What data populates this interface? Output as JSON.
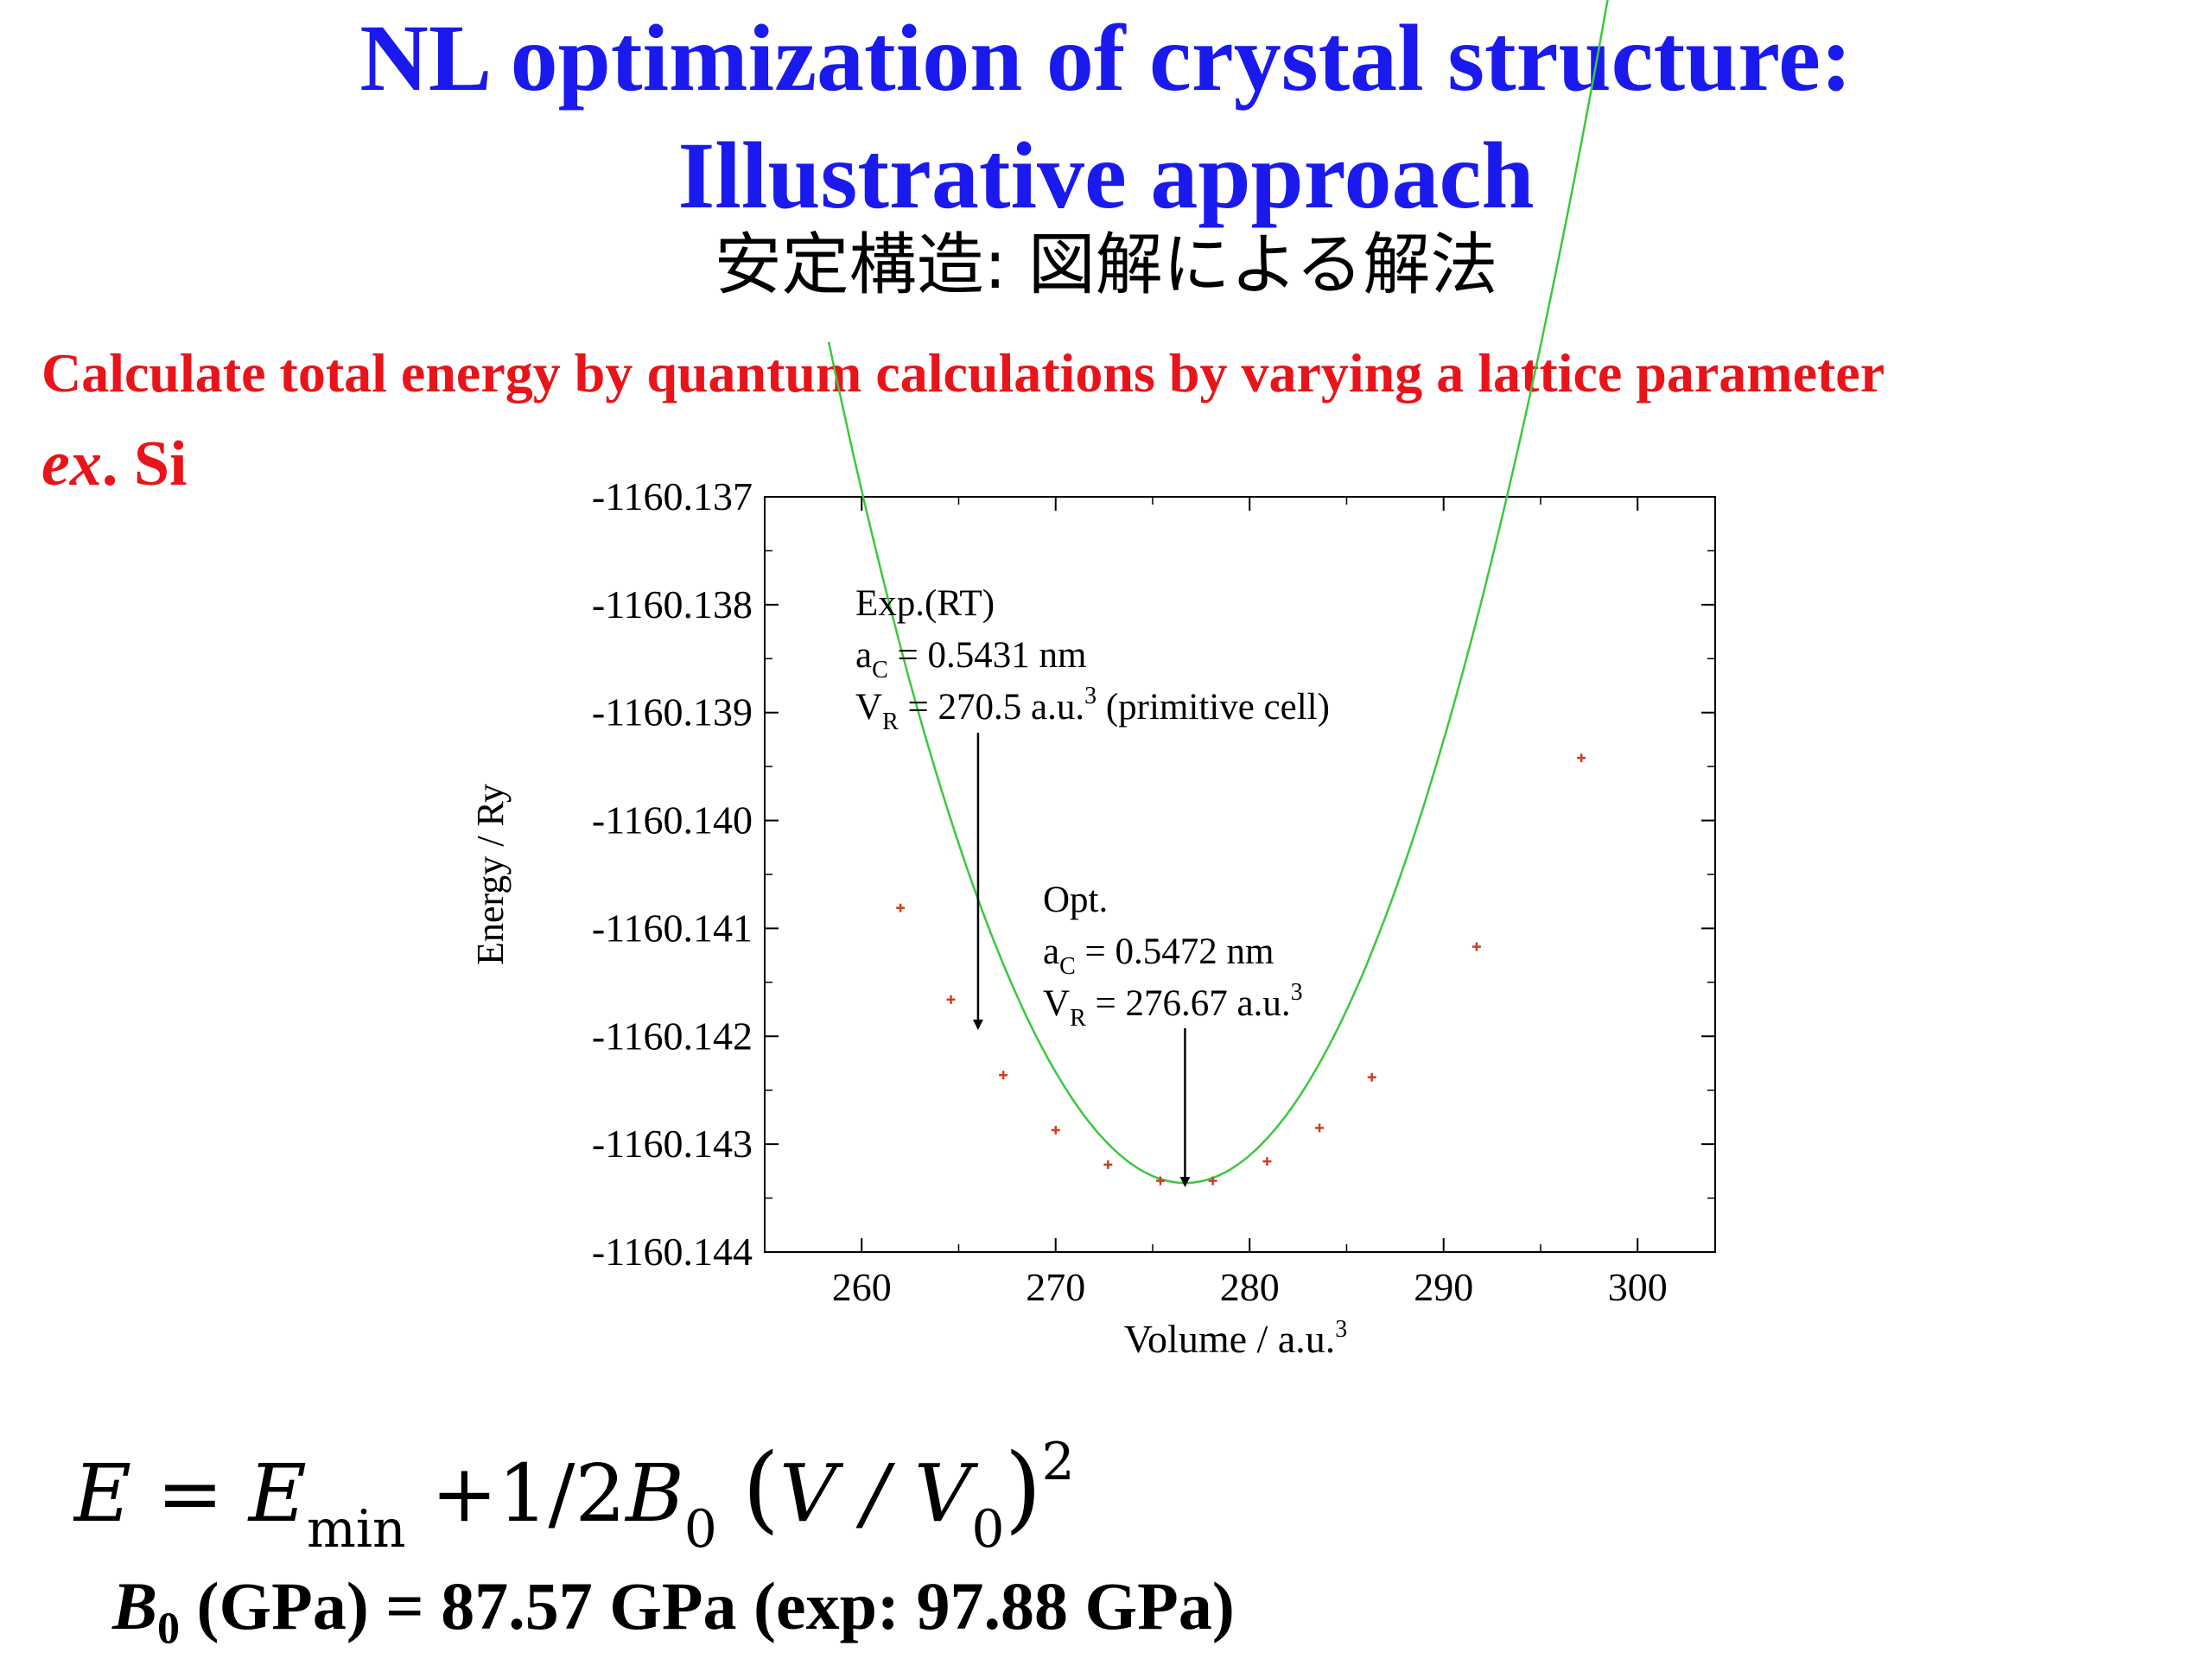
{
  "slide": {
    "title_line1": "NL optimization of crystal structure:",
    "title_line2": "Illustrative approach",
    "subtitle": "安定構造: 図解による解法",
    "intro": "Calculate total energy by quantum calculations by varying a lattice parameter",
    "example_prefix": "ex",
    "example_rest": ". Si",
    "formula": {
      "lhs": "E",
      "eq": "=",
      "e": "E",
      "e_sub": "min",
      "plus": "+1/2",
      "b": "B",
      "b_sub": "0",
      "v": "V / V",
      "v_sub": "0",
      "power": "2"
    },
    "bulk_modulus": {
      "symbol": "B",
      "sub": "0",
      "text": " (GPa) = 87.57 GPa  (exp: 97.88 GPa)"
    }
  },
  "chart_data": {
    "type": "scatter",
    "xlabel_main": "Volume / a.u.",
    "xlabel_sup": "3",
    "ylabel": "Energy / Ry",
    "xlim": [
      255,
      304
    ],
    "ylim": [
      -1160.144,
      -1160.137
    ],
    "x_ticks": [
      "260",
      "270",
      "280",
      "290",
      "300"
    ],
    "y_ticks": [
      "-1160.137",
      "-1160.138",
      "-1160.139",
      "-1160.140",
      "-1160.141",
      "-1160.142",
      "-1160.143",
      "-1160.144"
    ],
    "points": [
      {
        "x": 262.0,
        "y": -1160.14081
      },
      {
        "x": 264.6,
        "y": -1160.14166
      },
      {
        "x": 267.3,
        "y": -1160.14236
      },
      {
        "x": 270.0,
        "y": -1160.14287
      },
      {
        "x": 272.7,
        "y": -1160.14319
      },
      {
        "x": 275.4,
        "y": -1160.14334
      },
      {
        "x": 278.1,
        "y": -1160.14334
      },
      {
        "x": 280.9,
        "y": -1160.14316
      },
      {
        "x": 283.6,
        "y": -1160.14285
      },
      {
        "x": 286.3,
        "y": -1160.14238
      },
      {
        "x": 291.7,
        "y": -1160.14117
      },
      {
        "x": 297.1,
        "y": -1160.13942
      }
    ],
    "fit": {
      "x_range": [
        258.3,
        301.0
      ],
      "x_min": 276.67,
      "e_min": -1160.14336,
      "k": 2.31e-05,
      "color": "#3cc83c"
    },
    "point_color": "#d23c1e",
    "annotations": [
      {
        "lines": [
          {
            "main": "Exp.(RT)"
          },
          {
            "main": "a",
            "sub": "C",
            "rest": " = 0.5431 nm"
          },
          {
            "main": "V",
            "sub": "R",
            "rest": " = 270.5 a.u.",
            "sup": "3",
            "tail": " (primitive cell)"
          }
        ],
        "arrow_x": 266.0
      },
      {
        "lines": [
          {
            "main": "Opt."
          },
          {
            "main": "a",
            "sub": "C",
            "rest": " = 0.5472 nm"
          },
          {
            "main": "V",
            "sub": "R",
            "rest": " = 276.67 a.u.",
            "sup": "3"
          }
        ],
        "arrow_x": 276.67
      }
    ]
  }
}
